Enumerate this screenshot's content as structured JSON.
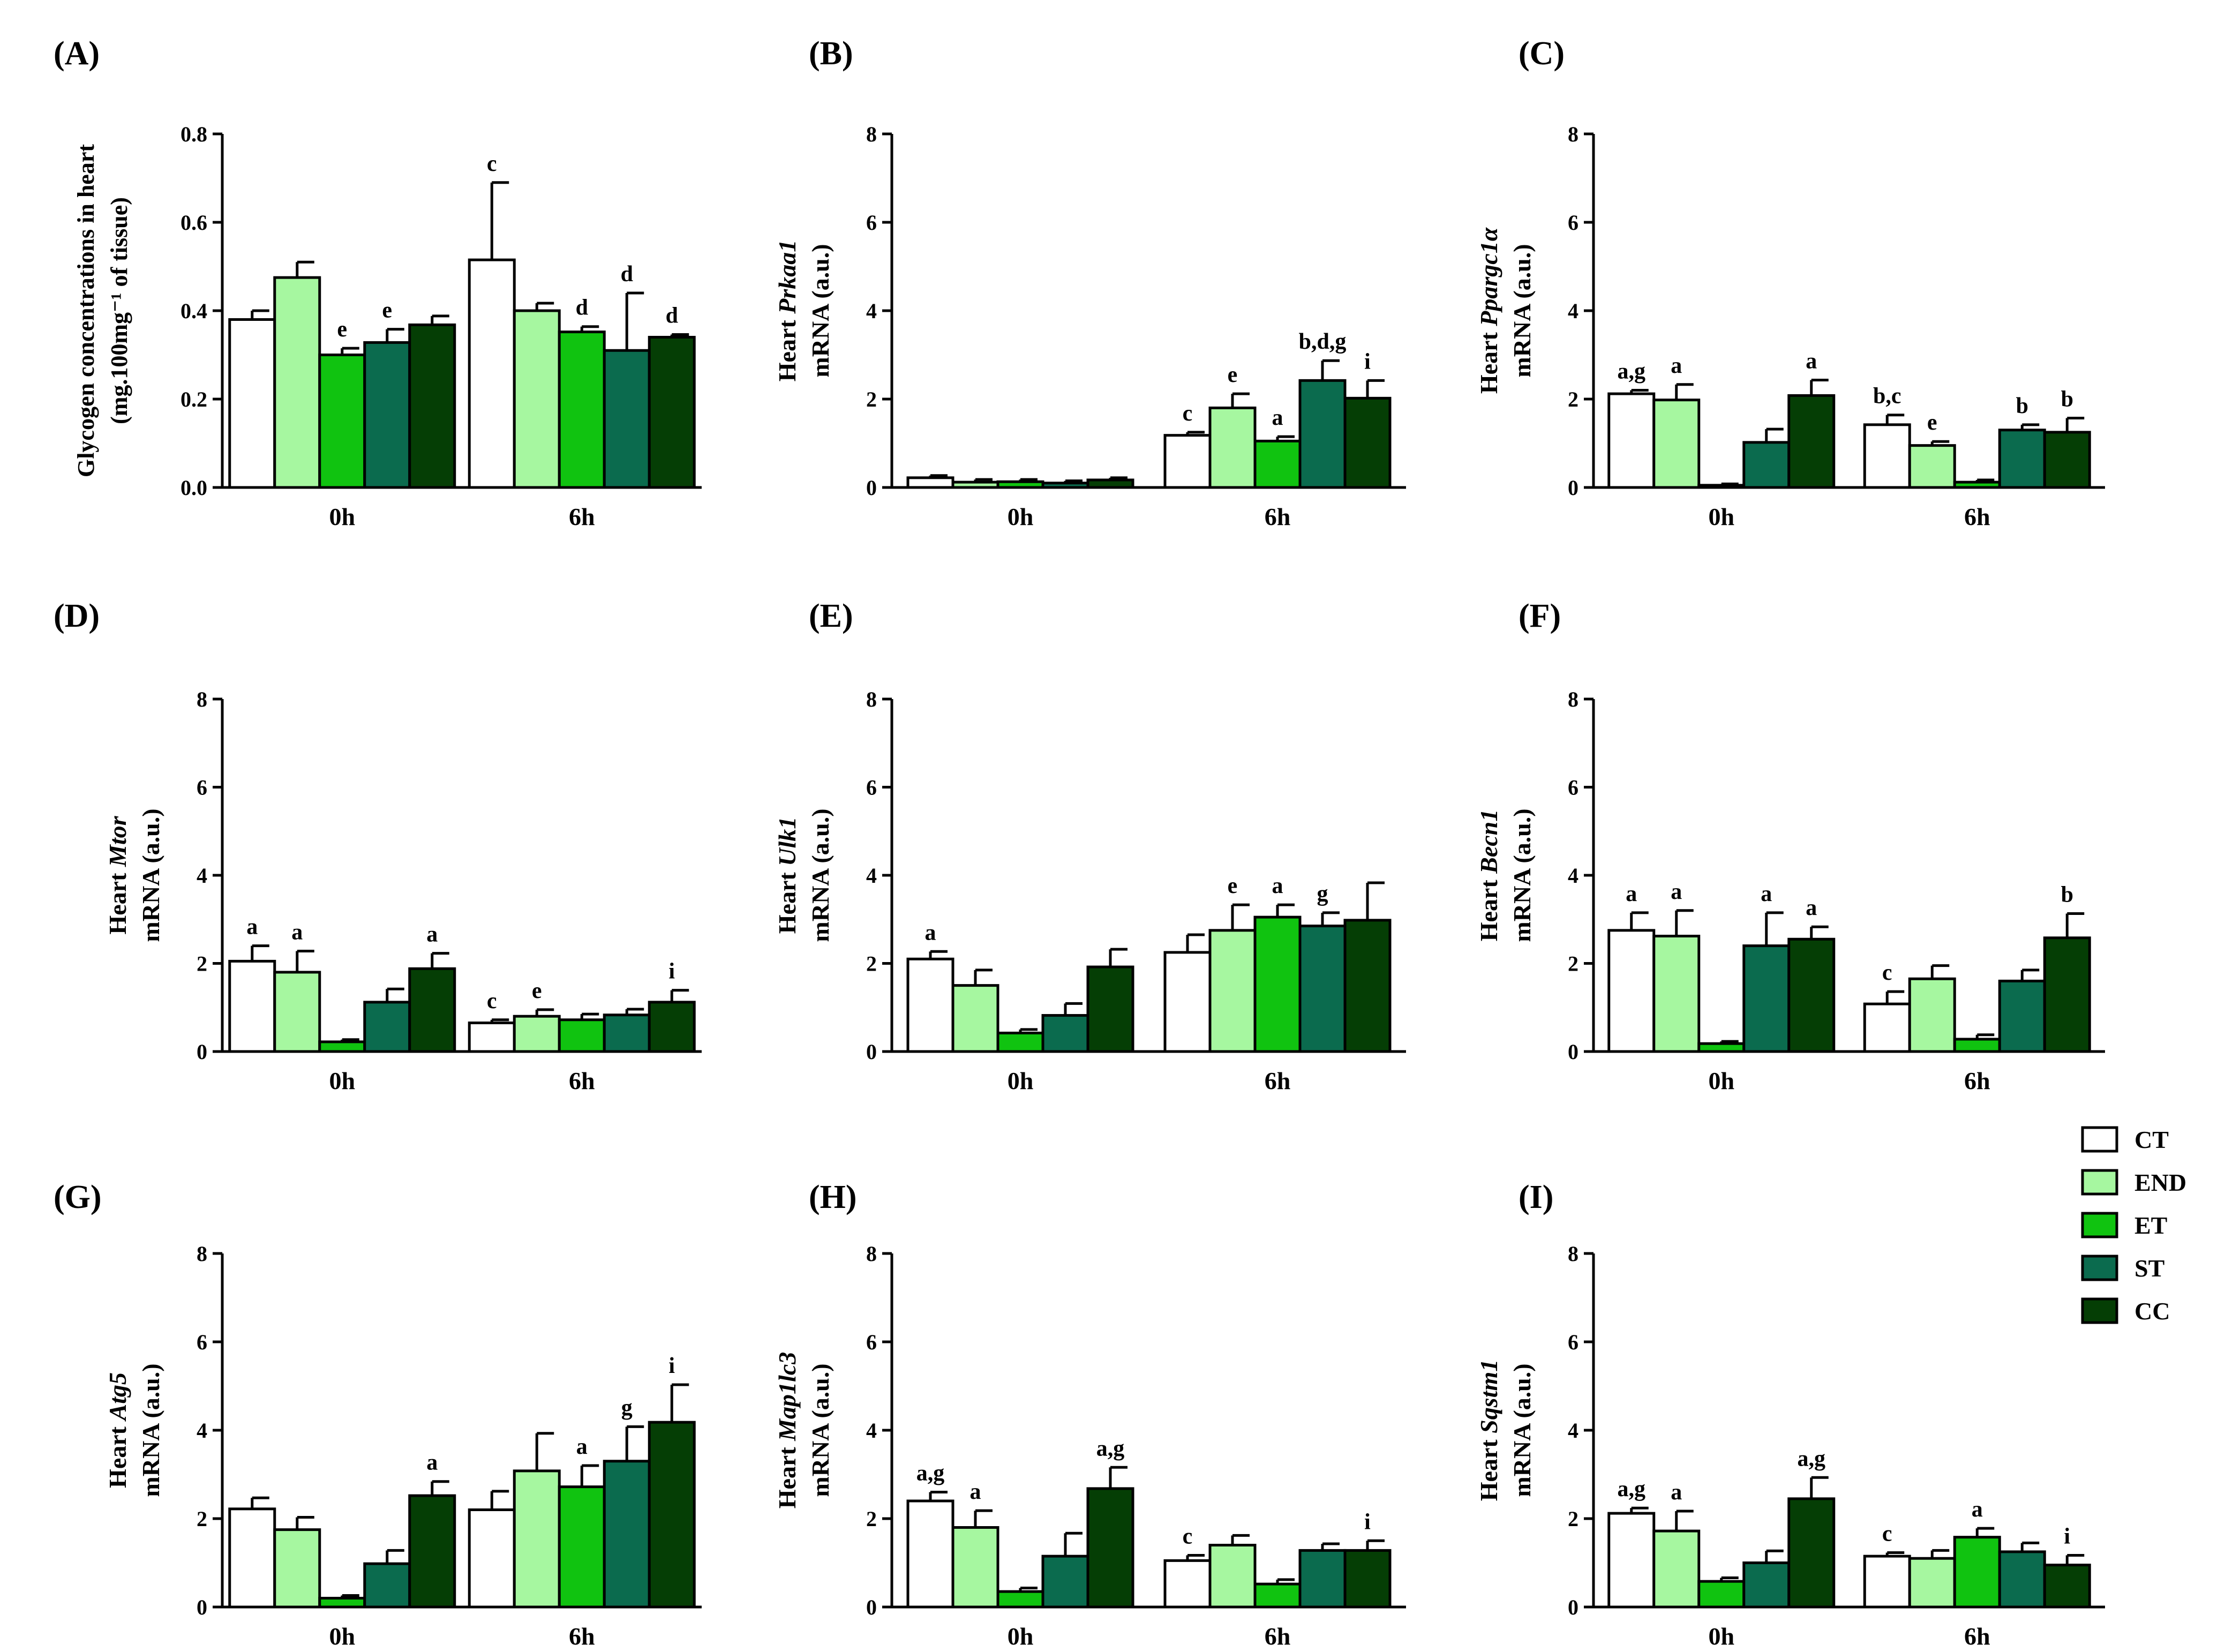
{
  "figure": {
    "legend": [
      {
        "label": "CT",
        "color": "#ffffff"
      },
      {
        "label": "END",
        "color": "#a6f7a0"
      },
      {
        "label": "ET",
        "color": "#10c310"
      },
      {
        "label": "ST",
        "color": "#0b6b4e"
      },
      {
        "label": "CC",
        "color": "#053e05"
      }
    ]
  },
  "chart_data": [
    {
      "panel": "(A)",
      "type": "bar",
      "ylabel_lines": [
        "Glycogen concentrations in heart",
        "(mg.100mg⁻¹ of tissue)"
      ],
      "ylabel_gene": "",
      "ylim": [
        0,
        0.8
      ],
      "yticks": [
        "0.0",
        "0.2",
        "0.4",
        "0.6",
        "0.8"
      ],
      "categories": [
        "0h",
        "6h"
      ],
      "series": [
        {
          "name": "CT",
          "values": [
            0.38,
            0.515
          ],
          "errors": [
            0.02,
            0.175
          ],
          "letters": [
            "",
            "c"
          ]
        },
        {
          "name": "END",
          "values": [
            0.475,
            0.4
          ],
          "errors": [
            0.035,
            0.017
          ],
          "letters": [
            "",
            ""
          ]
        },
        {
          "name": "ET",
          "values": [
            0.3,
            0.352
          ],
          "errors": [
            0.015,
            0.012
          ],
          "letters": [
            "e",
            "d"
          ]
        },
        {
          "name": "ST",
          "values": [
            0.328,
            0.31
          ],
          "errors": [
            0.03,
            0.13
          ],
          "letters": [
            "e",
            "d"
          ]
        },
        {
          "name": "CC",
          "values": [
            0.368,
            0.34
          ],
          "errors": [
            0.02,
            0.006
          ],
          "letters": [
            "",
            "d"
          ]
        }
      ]
    },
    {
      "panel": "(B)",
      "type": "bar",
      "ylabel_lines": [
        "Heart ",
        "mRNA (a.u.)"
      ],
      "ylabel_gene": "Prkaa1",
      "ylim": [
        0,
        8
      ],
      "yticks": [
        "0",
        "2",
        "4",
        "6",
        "8"
      ],
      "categories": [
        "0h",
        "6h"
      ],
      "series": [
        {
          "name": "CT",
          "values": [
            0.22,
            1.18
          ],
          "errors": [
            0.05,
            0.07
          ],
          "letters": [
            "",
            "c"
          ]
        },
        {
          "name": "END",
          "values": [
            0.12,
            1.8
          ],
          "errors": [
            0.06,
            0.32
          ],
          "letters": [
            "",
            "e"
          ]
        },
        {
          "name": "ET",
          "values": [
            0.13,
            1.05
          ],
          "errors": [
            0.05,
            0.1
          ],
          "letters": [
            "",
            "a"
          ]
        },
        {
          "name": "ST",
          "values": [
            0.1,
            2.42
          ],
          "errors": [
            0.05,
            0.45
          ],
          "letters": [
            "",
            "b,d,g"
          ]
        },
        {
          "name": "CC",
          "values": [
            0.17,
            2.02
          ],
          "errors": [
            0.05,
            0.4
          ],
          "letters": [
            "",
            "i"
          ]
        }
      ]
    },
    {
      "panel": "(C)",
      "type": "bar",
      "ylabel_lines": [
        "Heart ",
        "mRNA (a.u.)"
      ],
      "ylabel_gene": "Ppargc1α",
      "ylim": [
        0,
        8
      ],
      "yticks": [
        "0",
        "2",
        "4",
        "6",
        "8"
      ],
      "categories": [
        "0h",
        "6h"
      ],
      "series": [
        {
          "name": "CT",
          "values": [
            2.12,
            1.42
          ],
          "errors": [
            0.08,
            0.22
          ],
          "letters": [
            "a,g",
            "b,c"
          ]
        },
        {
          "name": "END",
          "values": [
            1.98,
            0.95
          ],
          "errors": [
            0.35,
            0.09
          ],
          "letters": [
            "a",
            "e"
          ]
        },
        {
          "name": "ET",
          "values": [
            0.05,
            0.12
          ],
          "errors": [
            0.03,
            0.05
          ],
          "letters": [
            "",
            ""
          ]
        },
        {
          "name": "ST",
          "values": [
            1.02,
            1.3
          ],
          "errors": [
            0.3,
            0.12
          ],
          "letters": [
            "",
            "b"
          ]
        },
        {
          "name": "CC",
          "values": [
            2.08,
            1.25
          ],
          "errors": [
            0.35,
            0.32
          ],
          "letters": [
            "a",
            "b"
          ]
        }
      ]
    },
    {
      "panel": "(D)",
      "type": "bar",
      "ylabel_lines": [
        "Heart ",
        "mRNA (a.u.)"
      ],
      "ylabel_gene": "Mtor",
      "ylim": [
        0,
        8
      ],
      "yticks": [
        "0",
        "2",
        "4",
        "6",
        "8"
      ],
      "categories": [
        "0h",
        "6h"
      ],
      "series": [
        {
          "name": "CT",
          "values": [
            2.05,
            0.65
          ],
          "errors": [
            0.35,
            0.07
          ],
          "letters": [
            "a",
            "c"
          ]
        },
        {
          "name": "END",
          "values": [
            1.8,
            0.8
          ],
          "errors": [
            0.48,
            0.15
          ],
          "letters": [
            "a",
            "e"
          ]
        },
        {
          "name": "ET",
          "values": [
            0.22,
            0.72
          ],
          "errors": [
            0.05,
            0.13
          ],
          "letters": [
            "",
            ""
          ]
        },
        {
          "name": "ST",
          "values": [
            1.12,
            0.83
          ],
          "errors": [
            0.3,
            0.13
          ],
          "letters": [
            "",
            ""
          ]
        },
        {
          "name": "CC",
          "values": [
            1.88,
            1.12
          ],
          "errors": [
            0.35,
            0.27
          ],
          "letters": [
            "a",
            "i"
          ]
        }
      ]
    },
    {
      "panel": "(E)",
      "type": "bar",
      "ylabel_lines": [
        "Heart ",
        "mRNA (a.u.)"
      ],
      "ylabel_gene": "Ulk1",
      "ylim": [
        0,
        8
      ],
      "yticks": [
        "0",
        "2",
        "4",
        "6",
        "8"
      ],
      "categories": [
        "0h",
        "6h"
      ],
      "series": [
        {
          "name": "CT",
          "values": [
            2.1,
            2.25
          ],
          "errors": [
            0.17,
            0.4
          ],
          "letters": [
            "a",
            ""
          ]
        },
        {
          "name": "END",
          "values": [
            1.5,
            2.75
          ],
          "errors": [
            0.35,
            0.58
          ],
          "letters": [
            "",
            "e"
          ]
        },
        {
          "name": "ET",
          "values": [
            0.42,
            3.05
          ],
          "errors": [
            0.08,
            0.28
          ],
          "letters": [
            "",
            "a"
          ]
        },
        {
          "name": "ST",
          "values": [
            0.82,
            2.85
          ],
          "errors": [
            0.27,
            0.3
          ],
          "letters": [
            "",
            "g"
          ]
        },
        {
          "name": "CC",
          "values": [
            1.92,
            2.98
          ],
          "errors": [
            0.4,
            0.85
          ],
          "letters": [
            "",
            ""
          ]
        }
      ]
    },
    {
      "panel": "(F)",
      "type": "bar",
      "ylabel_lines": [
        "Heart ",
        "mRNA (a.u.)"
      ],
      "ylabel_gene": "Becn1",
      "ylim": [
        0,
        8
      ],
      "yticks": [
        "0",
        "2",
        "4",
        "6",
        "8"
      ],
      "categories": [
        "0h",
        "6h"
      ],
      "series": [
        {
          "name": "CT",
          "values": [
            2.75,
            1.08
          ],
          "errors": [
            0.4,
            0.28
          ],
          "letters": [
            "a",
            "c"
          ]
        },
        {
          "name": "END",
          "values": [
            2.62,
            1.65
          ],
          "errors": [
            0.58,
            0.3
          ],
          "letters": [
            "a",
            ""
          ]
        },
        {
          "name": "ET",
          "values": [
            0.18,
            0.28
          ],
          "errors": [
            0.05,
            0.1
          ],
          "letters": [
            "",
            ""
          ]
        },
        {
          "name": "ST",
          "values": [
            2.4,
            1.6
          ],
          "errors": [
            0.75,
            0.25
          ],
          "letters": [
            "a",
            ""
          ]
        },
        {
          "name": "CC",
          "values": [
            2.55,
            2.58
          ],
          "errors": [
            0.28,
            0.55
          ],
          "letters": [
            "a",
            "b"
          ]
        }
      ]
    },
    {
      "panel": "(G)",
      "type": "bar",
      "ylabel_lines": [
        "Heart ",
        "mRNA (a.u.)"
      ],
      "ylabel_gene": "Atg5",
      "ylim": [
        0,
        8
      ],
      "yticks": [
        "0",
        "2",
        "4",
        "6",
        "8"
      ],
      "categories": [
        "0h",
        "6h"
      ],
      "series": [
        {
          "name": "CT",
          "values": [
            2.22,
            2.2
          ],
          "errors": [
            0.25,
            0.42
          ],
          "letters": [
            "",
            ""
          ]
        },
        {
          "name": "END",
          "values": [
            1.75,
            3.08
          ],
          "errors": [
            0.28,
            0.85
          ],
          "letters": [
            "",
            ""
          ]
        },
        {
          "name": "ET",
          "values": [
            0.2,
            2.72
          ],
          "errors": [
            0.06,
            0.48
          ],
          "letters": [
            "",
            "a"
          ]
        },
        {
          "name": "ST",
          "values": [
            0.98,
            3.3
          ],
          "errors": [
            0.3,
            0.78
          ],
          "letters": [
            "",
            "g"
          ]
        },
        {
          "name": "CC",
          "values": [
            2.52,
            4.18
          ],
          "errors": [
            0.32,
            0.85
          ],
          "letters": [
            "a",
            "i"
          ]
        }
      ]
    },
    {
      "panel": "(H)",
      "type": "bar",
      "ylabel_lines": [
        "Heart ",
        "mRNA (a.u.)"
      ],
      "ylabel_gene": "Map1lc3",
      "ylim": [
        0,
        8
      ],
      "yticks": [
        "0",
        "2",
        "4",
        "6",
        "8"
      ],
      "categories": [
        "0h",
        "6h"
      ],
      "series": [
        {
          "name": "CT",
          "values": [
            2.4,
            1.05
          ],
          "errors": [
            0.2,
            0.12
          ],
          "letters": [
            "a,g",
            "c"
          ]
        },
        {
          "name": "END",
          "values": [
            1.8,
            1.4
          ],
          "errors": [
            0.38,
            0.22
          ],
          "letters": [
            "a",
            ""
          ]
        },
        {
          "name": "ET",
          "values": [
            0.35,
            0.52
          ],
          "errors": [
            0.08,
            0.1
          ],
          "letters": [
            "",
            ""
          ]
        },
        {
          "name": "ST",
          "values": [
            1.15,
            1.28
          ],
          "errors": [
            0.52,
            0.15
          ],
          "letters": [
            "",
            ""
          ]
        },
        {
          "name": "CC",
          "values": [
            2.68,
            1.28
          ],
          "errors": [
            0.48,
            0.22
          ],
          "letters": [
            "a,g",
            "i"
          ]
        }
      ]
    },
    {
      "panel": "(I)",
      "type": "bar",
      "ylabel_lines": [
        "Heart ",
        "mRNA (a.u.)"
      ],
      "ylabel_gene": "Sqstm1",
      "ylim": [
        0,
        8
      ],
      "yticks": [
        "0",
        "2",
        "4",
        "6",
        "8"
      ],
      "categories": [
        "0h",
        "6h"
      ],
      "series": [
        {
          "name": "CT",
          "values": [
            2.12,
            1.15
          ],
          "errors": [
            0.12,
            0.08
          ],
          "letters": [
            "a,g",
            "c"
          ]
        },
        {
          "name": "END",
          "values": [
            1.72,
            1.1
          ],
          "errors": [
            0.45,
            0.18
          ],
          "letters": [
            "a",
            ""
          ]
        },
        {
          "name": "ET",
          "values": [
            0.58,
            1.58
          ],
          "errors": [
            0.08,
            0.2
          ],
          "letters": [
            "",
            "a"
          ]
        },
        {
          "name": "ST",
          "values": [
            1.0,
            1.25
          ],
          "errors": [
            0.27,
            0.2
          ],
          "letters": [
            "",
            ""
          ]
        },
        {
          "name": "CC",
          "values": [
            2.45,
            0.95
          ],
          "errors": [
            0.48,
            0.22
          ],
          "letters": [
            "a,g",
            "i"
          ]
        }
      ]
    }
  ]
}
